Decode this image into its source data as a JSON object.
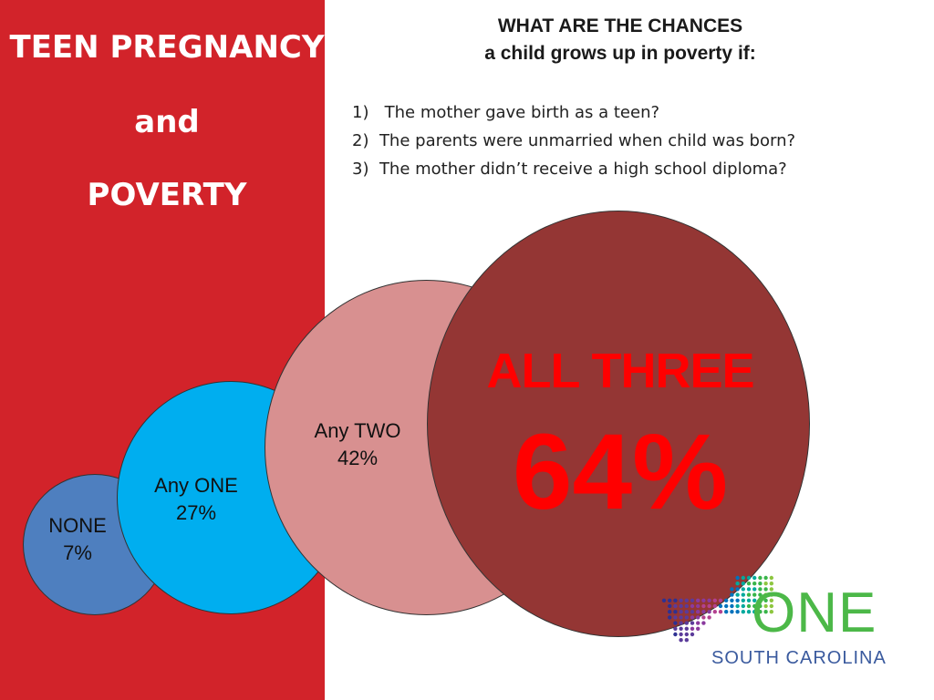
{
  "sidebar": {
    "title_line1": "TEEN PREGNANCY",
    "title_line2": "and",
    "title_line3": "POVERTY"
  },
  "heading": {
    "line1": "WHAT ARE THE CHANCES",
    "line2": "a child grows up in poverty if:"
  },
  "questions": [
    {
      "num": "1)",
      "text": "The mother gave birth as a teen?"
    },
    {
      "num": "2)",
      "text": "The parents were unmarried when child was born?"
    },
    {
      "num": "3)",
      "text": "The mother didn’t receive a high school diploma?"
    }
  ],
  "circles": [
    {
      "label": "NONE",
      "value": "7%",
      "fill": "#4e7fbf"
    },
    {
      "label": "Any ONE",
      "value": "27%",
      "fill": "#00aeef"
    },
    {
      "label": "Any TWO",
      "value": "42%",
      "fill": "#d89090"
    },
    {
      "label": "ALL THREE",
      "value": "64%",
      "fill": "#943634",
      "text_color": "#ff0000"
    }
  ],
  "logo": {
    "word": "ONE",
    "subtitle": "SOUTH CAROLINA",
    "color": "#4cb848",
    "subtitle_color": "#3a5a9e"
  },
  "colors": {
    "sidebar_red": "#d2232a"
  }
}
